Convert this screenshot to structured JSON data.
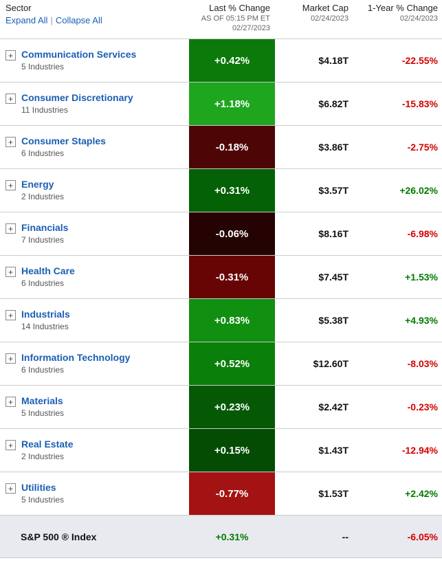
{
  "header": {
    "sector_label": "Sector",
    "expand_all": "Expand All",
    "separator": "|",
    "collapse_all": "Collapse All",
    "last_change_label": "Last % Change",
    "last_change_asof": "AS OF 05:15 PM ET",
    "last_change_date": "02/27/2023",
    "market_cap_label": "Market Cap",
    "market_cap_date": "02/24/2023",
    "year_change_label": "1-Year % Change",
    "year_change_date": "02/24/2023"
  },
  "icons": {
    "expand": "+"
  },
  "colors": {
    "link_blue": "#1a5fb4",
    "positive_green": "#007a00",
    "negative_red": "#d50000",
    "footer_background": "#e9e9f0"
  },
  "sectors": [
    {
      "name": "Communication Services",
      "industries": "5 Industries",
      "last_change": "+0.42%",
      "heat_color": "#0b7a0b",
      "market_cap": "$4.18T",
      "year_change": "-22.55%",
      "year_color": "#d50000"
    },
    {
      "name": "Consumer Discretionary",
      "industries": "11 Industries",
      "last_change": "+1.18%",
      "heat_color": "#1ea61e",
      "market_cap": "$6.82T",
      "year_change": "-15.83%",
      "year_color": "#d50000"
    },
    {
      "name": "Consumer Staples",
      "industries": "6 Industries",
      "last_change": "-0.18%",
      "heat_color": "#4d0505",
      "market_cap": "$3.86T",
      "year_change": "-2.75%",
      "year_color": "#d50000"
    },
    {
      "name": "Energy",
      "industries": "2 Industries",
      "last_change": "+0.31%",
      "heat_color": "#056105",
      "market_cap": "$3.57T",
      "year_change": "+26.02%",
      "year_color": "#007a00"
    },
    {
      "name": "Financials",
      "industries": "7 Industries",
      "last_change": "-0.06%",
      "heat_color": "#260303",
      "market_cap": "$8.16T",
      "year_change": "-6.98%",
      "year_color": "#d50000"
    },
    {
      "name": "Health Care",
      "industries": "6 Industries",
      "last_change": "-0.31%",
      "heat_color": "#670505",
      "market_cap": "$7.45T",
      "year_change": "+1.53%",
      "year_color": "#007a00"
    },
    {
      "name": "Industrials",
      "industries": "14 Industries",
      "last_change": "+0.83%",
      "heat_color": "#108f10",
      "market_cap": "$5.38T",
      "year_change": "+4.93%",
      "year_color": "#007a00"
    },
    {
      "name": "Information Technology",
      "industries": "6 Industries",
      "last_change": "+0.52%",
      "heat_color": "#0a7f0a",
      "market_cap": "$12.60T",
      "year_change": "-8.03%",
      "year_color": "#d50000"
    },
    {
      "name": "Materials",
      "industries": "5 Industries",
      "last_change": "+0.23%",
      "heat_color": "#055905",
      "market_cap": "$2.42T",
      "year_change": "-0.23%",
      "year_color": "#d50000"
    },
    {
      "name": "Real Estate",
      "industries": "2 Industries",
      "last_change": "+0.15%",
      "heat_color": "#044c04",
      "market_cap": "$1.43T",
      "year_change": "-12.94%",
      "year_color": "#d50000"
    },
    {
      "name": "Utilities",
      "industries": "5 Industries",
      "last_change": "-0.77%",
      "heat_color": "#a31313",
      "market_cap": "$1.53T",
      "year_change": "+2.42%",
      "year_color": "#007a00"
    }
  ],
  "footer": {
    "label": "S&P 500 ® Index",
    "last_change": "+0.31%",
    "last_change_color": "#007a00",
    "market_cap": "--",
    "market_cap_color": "#111111",
    "year_change": "-6.05%",
    "year_change_color": "#d50000"
  }
}
